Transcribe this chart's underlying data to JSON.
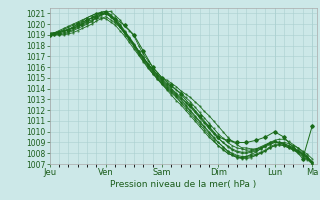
{
  "xlabel": "Pression niveau de la mer( hPa )",
  "ylim": [
    1007,
    1021.5
  ],
  "yticks": [
    1007,
    1008,
    1009,
    1010,
    1011,
    1012,
    1013,
    1014,
    1015,
    1016,
    1017,
    1018,
    1019,
    1020,
    1021
  ],
  "day_labels": [
    "Jeu",
    "Ven",
    "Sam",
    "Dim",
    "Lun",
    "Ma"
  ],
  "day_positions": [
    0,
    24,
    48,
    72,
    96,
    112
  ],
  "bg_color": "#cce8e8",
  "grid_color": "#aad0d0",
  "line_color": "#1a6b1a",
  "total_hours": 114,
  "lines": [
    {
      "x": [
        0,
        2,
        4,
        6,
        8,
        10,
        12,
        14,
        16,
        18,
        20,
        22,
        24,
        26,
        28,
        30,
        32,
        34,
        36,
        38,
        40,
        42,
        44,
        46,
        48,
        50,
        52,
        54,
        56,
        58,
        60,
        62,
        64,
        66,
        68,
        70,
        72,
        74,
        76,
        78,
        80,
        82,
        84,
        86,
        88,
        90,
        92,
        94,
        96,
        98,
        100,
        102,
        104,
        106,
        108,
        110,
        112
      ],
      "y": [
        1019.0,
        1019.1,
        1019.2,
        1019.3,
        1019.5,
        1019.6,
        1019.8,
        1019.9,
        1020.1,
        1020.2,
        1020.8,
        1020.9,
        1021.1,
        1021.2,
        1020.8,
        1020.4,
        1019.8,
        1019.4,
        1018.9,
        1018.0,
        1017.2,
        1016.6,
        1016.0,
        1015.5,
        1015.0,
        1014.8,
        1014.5,
        1014.2,
        1013.8,
        1013.5,
        1013.2,
        1012.8,
        1012.4,
        1011.9,
        1011.5,
        1011.0,
        1010.5,
        1010.0,
        1009.5,
        1009.1,
        1008.8,
        1008.5,
        1008.5,
        1008.4,
        1008.4,
        1008.6,
        1008.8,
        1009.0,
        1009.1,
        1009.0,
        1009.0,
        1008.9,
        1008.7,
        1008.5,
        1008.2,
        1007.9,
        1007.5
      ]
    },
    {
      "x": [
        0,
        2,
        4,
        6,
        8,
        10,
        12,
        14,
        16,
        18,
        20,
        22,
        24,
        26,
        28,
        30,
        32,
        34,
        36,
        38,
        40,
        42,
        44,
        46,
        48,
        50,
        52,
        54,
        56,
        58,
        60,
        62,
        64,
        66,
        68,
        70,
        72,
        74,
        76,
        78,
        80,
        82,
        84,
        86,
        88,
        90,
        92,
        94,
        96,
        98,
        100,
        102,
        104,
        106,
        108,
        110,
        112
      ],
      "y": [
        1019.0,
        1019.0,
        1019.0,
        1019.1,
        1019.2,
        1019.4,
        1019.6,
        1019.8,
        1020.0,
        1020.3,
        1020.6,
        1020.8,
        1021.0,
        1020.7,
        1020.3,
        1019.8,
        1019.3,
        1018.7,
        1018.1,
        1017.5,
        1016.9,
        1016.3,
        1015.8,
        1015.3,
        1014.9,
        1014.5,
        1014.2,
        1013.9,
        1013.6,
        1013.2,
        1012.8,
        1012.3,
        1011.8,
        1011.3,
        1010.8,
        1010.3,
        1009.8,
        1009.4,
        1009.0,
        1008.7,
        1008.5,
        1008.4,
        1008.3,
        1008.3,
        1008.4,
        1008.5,
        1008.7,
        1008.9,
        1009.1,
        1009.0,
        1008.9,
        1008.7,
        1008.5,
        1008.3,
        1008.0,
        1007.7,
        1007.2
      ]
    },
    {
      "x": [
        0,
        2,
        4,
        6,
        8,
        10,
        12,
        14,
        16,
        18,
        20,
        22,
        24,
        26,
        28,
        30,
        32,
        34,
        36,
        38,
        40,
        42,
        44,
        46,
        48,
        50,
        52,
        54,
        56,
        58,
        60,
        62,
        64,
        66,
        68,
        70,
        72,
        74,
        76,
        78,
        80,
        82,
        84,
        86,
        88,
        90,
        92,
        94,
        96,
        98,
        100,
        102,
        104,
        106,
        108,
        110,
        112
      ],
      "y": [
        1019.0,
        1019.0,
        1019.1,
        1019.2,
        1019.3,
        1019.5,
        1019.7,
        1020.0,
        1020.3,
        1020.6,
        1020.9,
        1021.1,
        1021.2,
        1020.9,
        1020.5,
        1020.0,
        1019.4,
        1018.8,
        1018.2,
        1017.5,
        1016.9,
        1016.3,
        1015.8,
        1015.3,
        1014.8,
        1014.4,
        1014.0,
        1013.6,
        1013.2,
        1012.8,
        1012.4,
        1011.9,
        1011.4,
        1010.9,
        1010.4,
        1009.9,
        1009.4,
        1009.0,
        1008.7,
        1008.4,
        1008.2,
        1008.1,
        1008.1,
        1008.2,
        1008.3,
        1008.5,
        1008.7,
        1008.9,
        1009.0,
        1009.0,
        1008.9,
        1008.7,
        1008.5,
        1008.2,
        1007.9,
        1007.6,
        1007.1
      ]
    },
    {
      "x": [
        0,
        2,
        4,
        6,
        8,
        10,
        12,
        14,
        16,
        18,
        20,
        22,
        24,
        26,
        28,
        30,
        32,
        34,
        36,
        38,
        40,
        42,
        44,
        46,
        48,
        50,
        52,
        54,
        56,
        58,
        60,
        62,
        64,
        66,
        68,
        70,
        72,
        74,
        76,
        78,
        80,
        82,
        84,
        86,
        88,
        90,
        92,
        94,
        96,
        98,
        100,
        102,
        104,
        106,
        108,
        110,
        112
      ],
      "y": [
        1019.0,
        1019.0,
        1019.0,
        1019.0,
        1019.1,
        1019.2,
        1019.4,
        1019.6,
        1019.8,
        1020.0,
        1020.3,
        1020.5,
        1020.7,
        1020.4,
        1020.1,
        1019.7,
        1019.2,
        1018.7,
        1018.1,
        1017.5,
        1016.9,
        1016.3,
        1015.7,
        1015.2,
        1014.7,
        1014.3,
        1013.9,
        1013.5,
        1013.1,
        1012.7,
        1012.3,
        1011.8,
        1011.3,
        1010.8,
        1010.3,
        1009.8,
        1009.4,
        1009.0,
        1008.6,
        1008.3,
        1008.1,
        1008.0,
        1008.0,
        1008.1,
        1008.2,
        1008.4,
        1008.6,
        1008.8,
        1009.0,
        1009.0,
        1008.8,
        1008.6,
        1008.4,
        1008.2,
        1007.9,
        1007.6,
        1007.2
      ]
    },
    {
      "x": [
        0,
        2,
        4,
        6,
        8,
        10,
        12,
        14,
        16,
        18,
        20,
        22,
        24,
        26,
        28,
        30,
        32,
        34,
        36,
        38,
        40,
        42,
        44,
        46,
        48,
        50,
        52,
        54,
        56,
        58,
        60,
        62,
        64,
        66,
        68,
        70,
        72,
        74,
        76,
        78,
        80,
        82,
        84,
        86,
        88,
        90,
        92,
        94,
        96,
        98,
        100,
        102,
        104,
        106,
        108,
        110,
        112
      ],
      "y": [
        1019.0,
        1019.2,
        1019.4,
        1019.6,
        1019.8,
        1020.0,
        1020.2,
        1020.4,
        1020.6,
        1020.8,
        1021.0,
        1021.1,
        1021.2,
        1020.8,
        1020.4,
        1019.9,
        1019.3,
        1018.7,
        1018.1,
        1017.4,
        1016.8,
        1016.2,
        1015.6,
        1015.1,
        1014.6,
        1014.2,
        1013.8,
        1013.4,
        1013.0,
        1012.5,
        1012.0,
        1011.5,
        1011.0,
        1010.5,
        1010.0,
        1009.5,
        1009.0,
        1008.6,
        1008.2,
        1008.0,
        1007.8,
        1007.7,
        1007.7,
        1007.8,
        1007.9,
        1008.1,
        1008.3,
        1008.6,
        1008.8,
        1008.9,
        1008.8,
        1008.6,
        1008.4,
        1008.2,
        1007.9,
        1007.6,
        1007.2
      ]
    },
    {
      "x": [
        0,
        2,
        4,
        6,
        8,
        10,
        12,
        14,
        16,
        18,
        20,
        22,
        24,
        26,
        28,
        30,
        32,
        34,
        36,
        38,
        40,
        42,
        44,
        46,
        48,
        50,
        52,
        54,
        56,
        58,
        60,
        62,
        64,
        66,
        68,
        70,
        72,
        74,
        76,
        78,
        80,
        82,
        84,
        86,
        88,
        90,
        92,
        94,
        96,
        98,
        100,
        102,
        104,
        106,
        108,
        110,
        112
      ],
      "y": [
        1019.0,
        1019.1,
        1019.3,
        1019.5,
        1019.7,
        1019.9,
        1020.1,
        1020.3,
        1020.6,
        1020.8,
        1021.0,
        1021.0,
        1021.1,
        1020.7,
        1020.3,
        1019.8,
        1019.2,
        1018.6,
        1018.0,
        1017.3,
        1016.7,
        1016.1,
        1015.5,
        1015.0,
        1014.5,
        1014.1,
        1013.7,
        1013.3,
        1012.8,
        1012.4,
        1011.9,
        1011.4,
        1010.9,
        1010.4,
        1009.9,
        1009.4,
        1009.0,
        1008.6,
        1008.2,
        1007.9,
        1007.7,
        1007.6,
        1007.6,
        1007.7,
        1007.8,
        1008.0,
        1008.2,
        1008.5,
        1008.7,
        1008.8,
        1008.7,
        1008.5,
        1008.3,
        1008.1,
        1007.8,
        1007.5,
        1007.1
      ]
    },
    {
      "x": [
        0,
        2,
        4,
        6,
        8,
        10,
        12,
        14,
        16,
        18,
        20,
        22,
        24,
        26,
        28,
        30,
        32,
        34,
        36,
        38,
        40,
        42,
        44,
        46,
        48,
        50,
        52,
        54,
        56,
        58,
        60,
        62,
        64,
        66,
        68,
        70,
        72,
        74,
        76,
        78,
        80,
        82,
        84,
        86,
        88,
        90,
        92,
        94,
        96,
        98,
        100,
        102,
        104,
        106,
        108,
        110,
        112
      ],
      "y": [
        1019.1,
        1019.2,
        1019.3,
        1019.4,
        1019.5,
        1019.7,
        1019.9,
        1020.1,
        1020.4,
        1020.6,
        1020.8,
        1021.0,
        1021.0,
        1020.7,
        1020.3,
        1019.7,
        1019.1,
        1018.5,
        1017.9,
        1017.2,
        1016.6,
        1016.0,
        1015.4,
        1014.9,
        1014.4,
        1014.0,
        1013.6,
        1013.2,
        1012.7,
        1012.2,
        1011.7,
        1011.2,
        1010.7,
        1010.2,
        1009.7,
        1009.2,
        1008.7,
        1008.4,
        1008.0,
        1007.8,
        1007.6,
        1007.5,
        1007.5,
        1007.6,
        1007.8,
        1008.0,
        1008.2,
        1008.5,
        1008.7,
        1008.8,
        1008.7,
        1008.5,
        1008.3,
        1008.0,
        1007.7,
        1007.4,
        1007.0
      ]
    },
    {
      "x": [
        0,
        2,
        4,
        6,
        8,
        10,
        12,
        14,
        16,
        18,
        20,
        22,
        24,
        26,
        28,
        30,
        32,
        34,
        36,
        38,
        40,
        42,
        44,
        46,
        48,
        50,
        52,
        54,
        56,
        58,
        60,
        62,
        64,
        66,
        68,
        70,
        72,
        74,
        76,
        78,
        80,
        82,
        84,
        86,
        88,
        90,
        92,
        94,
        96,
        98,
        100,
        102,
        104,
        106,
        108,
        110,
        112
      ],
      "y": [
        1019.2,
        1019.2,
        1019.3,
        1019.4,
        1019.5,
        1019.6,
        1019.8,
        1020.0,
        1020.2,
        1020.4,
        1020.5,
        1020.6,
        1020.5,
        1020.2,
        1019.9,
        1019.4,
        1018.9,
        1018.3,
        1017.7,
        1017.1,
        1016.5,
        1015.9,
        1015.4,
        1014.9,
        1014.4,
        1013.9,
        1013.4,
        1012.9,
        1012.5,
        1012.0,
        1011.5,
        1011.0,
        1010.5,
        1010.0,
        1009.5,
        1009.1,
        1008.7,
        1008.3,
        1008.0,
        1007.8,
        1007.6,
        1007.6,
        1007.7,
        1007.9,
        1008.1,
        1008.4,
        1008.7,
        1009.0,
        1009.2,
        1009.3,
        1009.3,
        1009.1,
        1008.8,
        1008.5,
        1008.1,
        1007.7,
        1007.0
      ]
    },
    {
      "x": [
        0,
        4,
        8,
        12,
        16,
        20,
        24,
        28,
        32,
        36,
        40,
        44,
        48,
        52,
        56,
        60,
        64,
        68,
        72,
        76,
        80,
        84,
        88,
        92,
        96,
        100,
        104,
        108,
        112
      ],
      "y": [
        1019.0,
        1019.2,
        1019.5,
        1020.0,
        1020.4,
        1020.7,
        1021.0,
        1020.5,
        1019.9,
        1019.0,
        1017.5,
        1016.0,
        1015.0,
        1014.3,
        1013.5,
        1012.5,
        1011.5,
        1010.5,
        1009.5,
        1009.2,
        1009.0,
        1009.0,
        1009.2,
        1009.5,
        1010.0,
        1009.5,
        1008.5,
        1007.5,
        1010.5
      ]
    }
  ]
}
